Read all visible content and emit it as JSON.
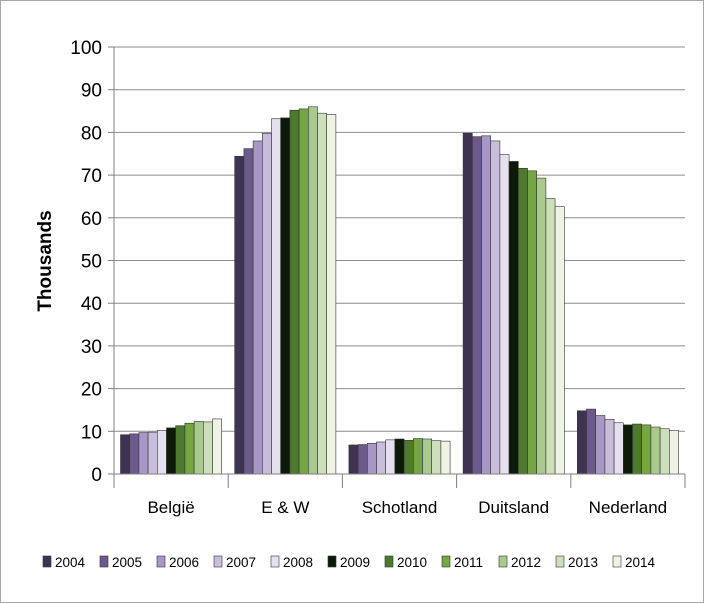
{
  "chart_data": {
    "type": "bar",
    "title": "",
    "xlabel": "",
    "ylabel": "Thousands",
    "ylim": [
      0,
      100
    ],
    "yticks": [
      0,
      10,
      20,
      30,
      40,
      50,
      60,
      70,
      80,
      90,
      100
    ],
    "grid": true,
    "legend_position": "bottom",
    "categories": [
      "België",
      "E & W",
      "Schotland",
      "Duitsland",
      "Nederland"
    ],
    "series": [
      {
        "name": "2004",
        "color": "#3f3354",
        "values": [
          9.2,
          74.4,
          6.8,
          79.8,
          14.8
        ]
      },
      {
        "name": "2005",
        "color": "#6d5a8c",
        "values": [
          9.4,
          76.2,
          6.9,
          79.0,
          15.2
        ]
      },
      {
        "name": "2006",
        "color": "#a896c6",
        "values": [
          9.7,
          78.0,
          7.2,
          79.2,
          13.7
        ]
      },
      {
        "name": "2007",
        "color": "#c8bddb",
        "values": [
          9.8,
          79.8,
          7.5,
          78.0,
          12.8
        ]
      },
      {
        "name": "2008",
        "color": "#e5e0ee",
        "values": [
          10.2,
          83.2,
          8.0,
          74.8,
          12.0
        ]
      },
      {
        "name": "2009",
        "color": "#0d1a09",
        "values": [
          10.8,
          83.4,
          8.2,
          73.2,
          11.5
        ]
      },
      {
        "name": "2010",
        "color": "#4d7a2e",
        "values": [
          11.3,
          85.2,
          7.9,
          71.6,
          11.7
        ]
      },
      {
        "name": "2011",
        "color": "#76a543",
        "values": [
          11.9,
          85.5,
          8.3,
          71.0,
          11.5
        ]
      },
      {
        "name": "2012",
        "color": "#a9c98d",
        "values": [
          12.3,
          86.0,
          8.2,
          69.3,
          11.0
        ]
      },
      {
        "name": "2013",
        "color": "#ccdfba",
        "values": [
          12.2,
          84.5,
          7.8,
          64.5,
          10.6
        ]
      },
      {
        "name": "2014",
        "color": "#eef3e3",
        "values": [
          12.9,
          84.2,
          7.7,
          62.6,
          10.2
        ]
      }
    ]
  }
}
